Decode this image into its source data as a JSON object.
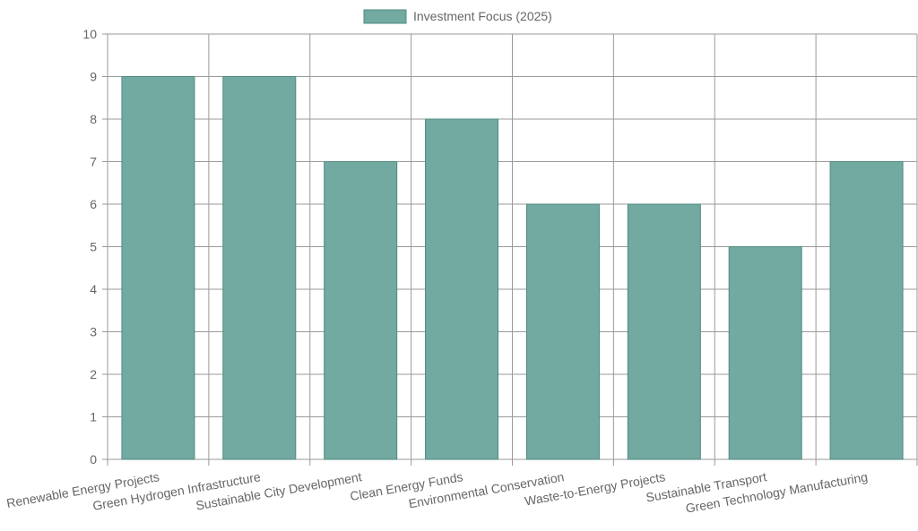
{
  "chart_data": {
    "type": "bar",
    "categories": [
      "Renewable Energy Projects",
      "Green Hydrogen Infrastructure",
      "Sustainable City Development",
      "Clean Energy Funds",
      "Environmental Conservation",
      "Waste-to-Energy Projects",
      "Sustainable Transport",
      "Green Technology Manufacturing"
    ],
    "series": [
      {
        "name": "Investment Focus (2025)",
        "values": [
          9,
          9,
          7,
          8,
          6,
          6,
          5,
          7
        ]
      }
    ],
    "ylim": [
      0,
      10
    ],
    "yticks": [
      0,
      1,
      2,
      3,
      4,
      5,
      6,
      7,
      8,
      9,
      10
    ],
    "grid": true,
    "legend_position": "top-center",
    "colors": {
      "bar_fill": "#72a9a0",
      "bar_border": "#4e8a80",
      "grid": "#9a9a9a",
      "text": "#666666"
    }
  }
}
